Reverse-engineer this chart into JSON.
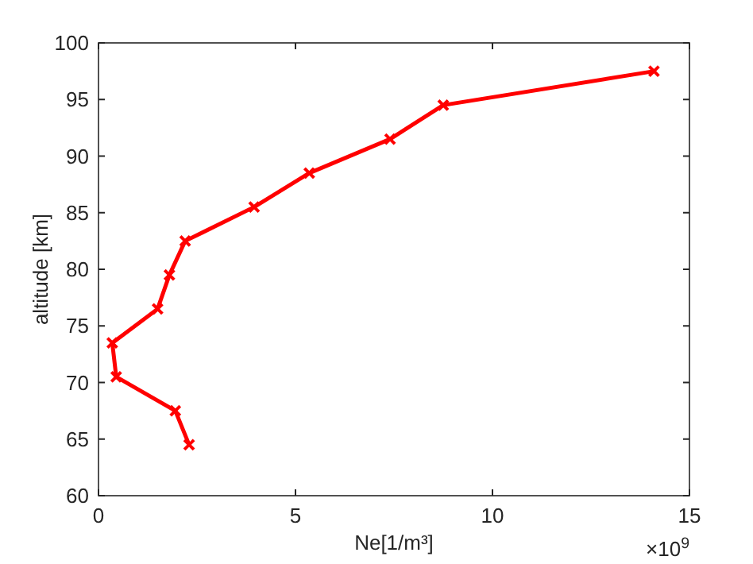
{
  "chart_data": {
    "type": "line",
    "xlabel": "Ne[1/m³]",
    "ylabel": "altitude [km]",
    "annotations": [
      "×10$^{9}$"
    ],
    "series": [
      {
        "color": "#ff0000",
        "x": [
          2.3,
          1.95,
          0.45,
          0.35,
          1.5,
          1.8,
          2.2,
          3.95,
          5.35,
          7.4,
          8.75,
          14.1
        ],
        "values": [
          64.5,
          67.5,
          70.5,
          73.5,
          76.5,
          79.5,
          82.5,
          85.5,
          88.5,
          91.5,
          94.5,
          97.5
        ]
      }
    ],
    "xlim": [
      0,
      15
    ],
    "xticks": [
      0,
      5,
      10,
      15
    ],
    "ylim": [
      60,
      100
    ],
    "yticks": [
      60,
      65,
      70,
      75,
      80,
      85,
      90,
      95,
      100
    ],
    "grid": false,
    "marker": "cross",
    "line_style": "solid"
  }
}
